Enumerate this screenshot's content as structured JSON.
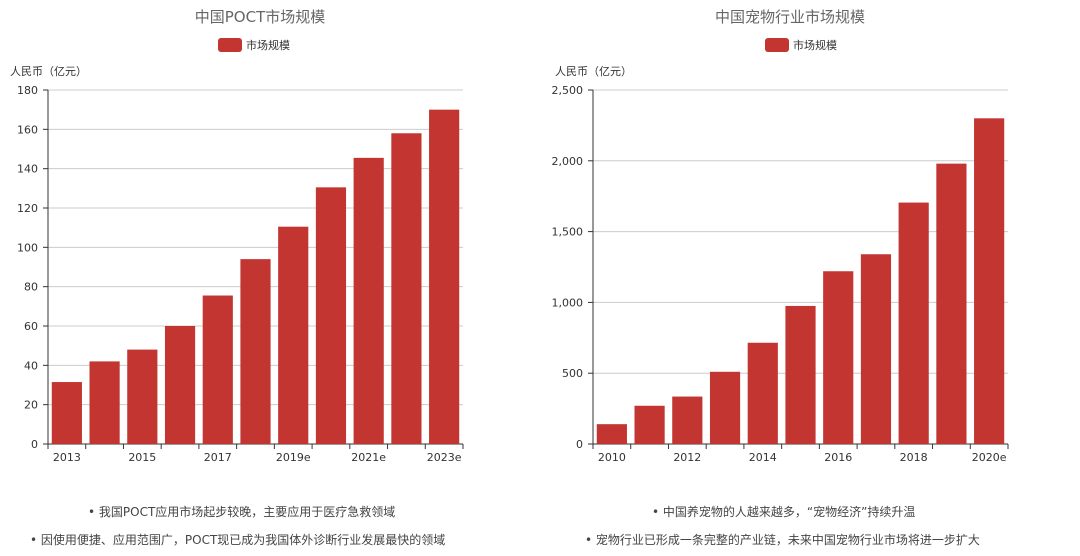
{
  "charts": [
    {
      "title": "中国POCT市场规模",
      "unit": "人民币（亿元）",
      "legend": "市场规模",
      "bullets": [
        "• 我国POCT应用市场起步较晚，主要应用于医疗急救领域",
        "• 因使用便捷、应用范围广，POCT现已成为我国体外诊断行业发展最快的领域"
      ]
    },
    {
      "title": "中国宠物行业市场规模",
      "unit": "人民币（亿元）",
      "legend": "市场规模",
      "bullets": [
        "• 中国养宠物的人越来越多，“宠物经济”持续升温",
        "• 宠物行业已形成一条完整的产业链，未来中国宠物行业市场将进一步扩大"
      ]
    }
  ],
  "colors": {
    "bar": "#c23531",
    "axis": "#333333",
    "grid": "#cccccc"
  },
  "chart_data": [
    {
      "type": "bar",
      "title": "中国POCT市场规模",
      "ylabel": "人民币（亿元）",
      "categories": [
        "2013",
        "2014",
        "2015",
        "2016",
        "2017",
        "2018",
        "2019e",
        "2020e",
        "2021e",
        "2022e",
        "2023e"
      ],
      "x_tick_labels": [
        "2013",
        "2015",
        "2017",
        "2019e",
        "2021e",
        "2023e"
      ],
      "series": [
        {
          "name": "市场规模",
          "values": [
            31.5,
            42,
            48,
            60,
            75.5,
            94,
            110.5,
            130.5,
            145.5,
            158,
            170
          ]
        }
      ],
      "ylim": [
        0,
        180
      ],
      "yticks": [
        0,
        20,
        40,
        60,
        80,
        100,
        120,
        140,
        160,
        180
      ],
      "ytick_labels": [
        "0",
        "20",
        "40",
        "60",
        "80",
        "100",
        "120",
        "140",
        "160",
        "180"
      ],
      "grid": true,
      "legend_position": "top-center"
    },
    {
      "type": "bar",
      "title": "中国宠物行业市场规模",
      "ylabel": "人民币（亿元）",
      "categories": [
        "2010",
        "2011",
        "2012",
        "2013",
        "2014",
        "2015",
        "2016",
        "2017",
        "2018",
        "2019",
        "2020e"
      ],
      "x_tick_labels": [
        "2010",
        "2012",
        "2014",
        "2016",
        "2018",
        "2020e"
      ],
      "series": [
        {
          "name": "市场规模",
          "values": [
            140,
            270,
            335,
            510,
            715,
            975,
            1220,
            1340,
            1705,
            1980,
            2300
          ]
        }
      ],
      "ylim": [
        0,
        2500
      ],
      "yticks": [
        0,
        500,
        1000,
        1500,
        2000,
        2500
      ],
      "ytick_labels": [
        "0",
        "500",
        "1,000",
        "1,500",
        "2,000",
        "2,500"
      ],
      "grid": true,
      "legend_position": "top-center"
    }
  ]
}
